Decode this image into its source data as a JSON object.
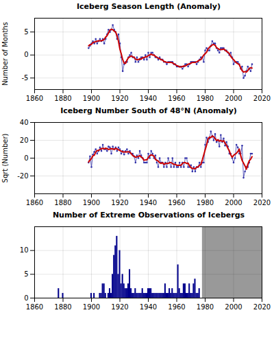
{
  "chart_data": [
    {
      "type": "line",
      "title": "Iceberg Season Length (Anomaly)",
      "ylabel": "Number of Months",
      "x": [
        1898,
        1899,
        1900,
        1901,
        1902,
        1903,
        1904,
        1905,
        1906,
        1907,
        1908,
        1909,
        1910,
        1911,
        1912,
        1913,
        1914,
        1915,
        1916,
        1917,
        1918,
        1919,
        1920,
        1921,
        1922,
        1923,
        1924,
        1925,
        1926,
        1927,
        1928,
        1929,
        1930,
        1931,
        1932,
        1933,
        1934,
        1935,
        1936,
        1937,
        1938,
        1939,
        1940,
        1941,
        1942,
        1943,
        1944,
        1945,
        1946,
        1947,
        1948,
        1949,
        1950,
        1951,
        1952,
        1953,
        1954,
        1955,
        1956,
        1957,
        1958,
        1959,
        1960,
        1961,
        1962,
        1963,
        1964,
        1965,
        1966,
        1967,
        1968,
        1969,
        1970,
        1971,
        1972,
        1973,
        1974,
        1975,
        1976,
        1977,
        1978,
        1979,
        1980,
        1981,
        1982,
        1983,
        1984,
        1985,
        1986,
        1987,
        1988,
        1989,
        1990,
        1991,
        1992,
        1993,
        1994,
        1995,
        1996,
        1997,
        1998,
        1999,
        2000,
        2001,
        2002,
        2003,
        2004,
        2005,
        2006,
        2007,
        2008,
        2009,
        2010,
        2011,
        2012,
        2013
      ],
      "series": [
        {
          "color": "#3333AA",
          "marker": "circle",
          "values": [
            1.5,
            2.0,
            2.5,
            3.0,
            2.5,
            3.5,
            2.5,
            3.0,
            3.5,
            3.0,
            3.5,
            2.5,
            3.5,
            4.5,
            5.5,
            5.0,
            5.5,
            6.5,
            5.5,
            5.0,
            3.5,
            4.5,
            2.5,
            -0.5,
            -3.5,
            -2.0,
            -1.5,
            -1.5,
            -0.5,
            0.0,
            0.5,
            -0.5,
            -0.5,
            -1.5,
            -0.5,
            -1.5,
            -1.0,
            -0.5,
            -0.5,
            -1.0,
            0.0,
            -1.0,
            0.5,
            -0.5,
            0.5,
            0.5,
            0.0,
            -0.5,
            -0.5,
            -1.0,
            -0.5,
            -1.0,
            -1.0,
            -1.5,
            -1.5,
            -2.0,
            -1.5,
            -1.5,
            -1.5,
            -1.5,
            -2.0,
            -2.0,
            -2.5,
            -2.5,
            -2.5,
            -2.5,
            -3.0,
            -2.5,
            -2.0,
            -2.0,
            -2.5,
            -2.0,
            -1.5,
            -1.5,
            -1.5,
            -1.5,
            -2.0,
            -1.5,
            -1.0,
            -0.5,
            -0.5,
            -1.5,
            1.0,
            1.5,
            1.0,
            1.0,
            2.0,
            3.0,
            2.5,
            2.5,
            1.5,
            1.0,
            0.5,
            1.5,
            1.5,
            1.5,
            1.0,
            1.0,
            0.5,
            0.0,
            0.5,
            -0.5,
            -2.0,
            -1.5,
            -1.5,
            -1.5,
            -2.0,
            -3.0,
            -2.5,
            -5.0,
            -4.5,
            -3.5,
            -2.5,
            -3.0,
            -3.5,
            -2.0
          ]
        },
        {
          "color": "#CC0000",
          "values": [
            2.0,
            2.25,
            2.3,
            2.7,
            2.8,
            2.9,
            3.0,
            3.1,
            3.1,
            3.1,
            3.2,
            3.4,
            3.9,
            4.2,
            4.8,
            5.4,
            5.6,
            5.5,
            5.2,
            5.0,
            4.2,
            3.0,
            1.3,
            0.2,
            -1.0,
            -1.8,
            -1.8,
            -1.1,
            -0.6,
            -0.4,
            -0.2,
            -0.4,
            -0.5,
            -0.9,
            -1.0,
            -1.0,
            -0.8,
            -0.9,
            -0.6,
            -0.6,
            -0.4,
            -0.4,
            -0.1,
            0.0,
            0.2,
            0.0,
            0.0,
            -0.3,
            -0.5,
            -0.7,
            -0.8,
            -1.0,
            -1.1,
            -1.4,
            -1.5,
            -1.6,
            -1.6,
            -1.6,
            -1.6,
            -1.7,
            -1.9,
            -2.1,
            -2.3,
            -2.4,
            -2.6,
            -2.6,
            -2.5,
            -2.4,
            -2.4,
            -2.2,
            -2.0,
            -1.9,
            -1.8,
            -1.6,
            -1.6,
            -1.6,
            -1.5,
            -1.3,
            -1.1,
            -1.0,
            -0.5,
            0.0,
            0.3,
            0.6,
            1.3,
            1.7,
            1.9,
            2.2,
            2.3,
            2.1,
            1.6,
            1.4,
            1.2,
            1.2,
            1.2,
            1.3,
            1.1,
            0.8,
            0.6,
            0.3,
            -0.3,
            -0.7,
            -1.0,
            -1.4,
            -1.7,
            -1.9,
            -2.1,
            -2.8,
            -3.4,
            -3.7,
            -3.6,
            -3.7,
            -3.4,
            -2.9,
            -2.75,
            -2.8333333333333335
          ]
        }
      ],
      "xlim": [
        1860,
        2020
      ],
      "xticks": [
        1860,
        1880,
        1900,
        1920,
        1940,
        1960,
        1980,
        2000,
        2020
      ],
      "ylim": [
        -7.5,
        8
      ],
      "yticks": [
        -5,
        0,
        5
      ],
      "grid": true
    },
    {
      "type": "line",
      "title": "Iceberg Number South of 48°N (Anomaly)",
      "ylabel": "Sqrt (Number)",
      "x": [
        1898,
        1899,
        1900,
        1901,
        1902,
        1903,
        1904,
        1905,
        1906,
        1907,
        1908,
        1909,
        1910,
        1911,
        1912,
        1913,
        1914,
        1915,
        1916,
        1917,
        1918,
        1919,
        1920,
        1921,
        1922,
        1923,
        1924,
        1925,
        1926,
        1927,
        1928,
        1929,
        1930,
        1931,
        1932,
        1933,
        1934,
        1935,
        1936,
        1937,
        1938,
        1939,
        1940,
        1941,
        1942,
        1943,
        1944,
        1945,
        1946,
        1947,
        1948,
        1949,
        1950,
        1951,
        1952,
        1953,
        1954,
        1955,
        1956,
        1957,
        1958,
        1959,
        1960,
        1961,
        1962,
        1963,
        1964,
        1965,
        1966,
        1967,
        1968,
        1969,
        1970,
        1971,
        1972,
        1973,
        1974,
        1975,
        1976,
        1977,
        1978,
        1979,
        1980,
        1981,
        1982,
        1983,
        1984,
        1985,
        1986,
        1987,
        1988,
        1989,
        1990,
        1991,
        1992,
        1993,
        1994,
        1995,
        1996,
        1997,
        1998,
        1999,
        2000,
        2001,
        2002,
        2003,
        2004,
        2005,
        2006,
        2007,
        2008,
        2009,
        2010,
        2011,
        2012,
        2013
      ],
      "series": [
        {
          "color": "#3333AA",
          "marker": "circle",
          "values": [
            -5.0,
            2.0,
            -10.0,
            4.0,
            7.0,
            10.0,
            5.0,
            8.0,
            12.0,
            8.0,
            15.0,
            10.0,
            10.0,
            8.0,
            13.0,
            12.0,
            5.0,
            13.0,
            10.0,
            12.0,
            8.0,
            12.0,
            10.0,
            5.0,
            8.0,
            4.0,
            8.0,
            10.0,
            5.0,
            8.0,
            5.0,
            5.0,
            2.0,
            -5.0,
            3.0,
            0.0,
            8.0,
            3.0,
            0.0,
            -5.0,
            -5.0,
            -5.0,
            5.0,
            0.0,
            8.0,
            5.0,
            0.0,
            3.0,
            -5.0,
            -10.0,
            0.0,
            -5.0,
            -5.0,
            -10.0,
            -5.0,
            -10.0,
            0.0,
            -5.0,
            -10.0,
            0.0,
            -10.0,
            -5.0,
            -10.0,
            -10.0,
            -5.0,
            -10.0,
            -5.0,
            -10.0,
            0.0,
            0.0,
            -10.0,
            -10.0,
            -8.0,
            -15.0,
            -10.0,
            -15.0,
            -10.0,
            -10.0,
            -5.0,
            -10.0,
            -5.0,
            -5.0,
            15.0,
            23.0,
            18.0,
            22.0,
            30.0,
            25.0,
            20.0,
            27.0,
            18.0,
            20.0,
            13.0,
            26.0,
            18.0,
            22.0,
            14.0,
            18.0,
            13.0,
            5.0,
            5.0,
            0.0,
            -5.0,
            0.0,
            15.0,
            12.0,
            5.0,
            5.0,
            14.0,
            -22.0,
            -15.0,
            -10.0,
            -10.0,
            -5.0,
            5.0,
            5.0
          ]
        },
        {
          "color": "#CC0000",
          "values": [
            -4.333333333333333,
            -2.25,
            -0.4,
            2.6,
            3.2,
            6.8,
            8.4,
            8.6,
            9.6,
            10.6,
            11.0,
            10.2,
            11.2,
            10.6,
            9.6,
            10.2,
            10.6,
            10.4,
            9.6,
            11.0,
            10.4,
            9.4,
            8.6,
            7.8,
            7.0,
            7.0,
            7.0,
            7.0,
            7.2,
            6.6,
            5.0,
            3.0,
            2.0,
            1.0,
            1.6,
            1.8,
            2.8,
            1.2,
            0.2,
            -2.4,
            -2.0,
            -2.0,
            0.6,
            2.6,
            3.6,
            3.2,
            2.2,
            -1.4,
            -2.4,
            -3.4,
            -5.0,
            -6.0,
            -5.0,
            -7.0,
            -6.0,
            -6.0,
            -6.0,
            -5.0,
            -5.0,
            -6.0,
            -7.0,
            -7.0,
            -8.0,
            -8.0,
            -8.0,
            -8.0,
            -6.0,
            -5.0,
            -5.0,
            -6.0,
            -5.6,
            -8.6,
            -10.6,
            -11.6,
            -11.6,
            -12.0,
            -10.0,
            -10.0,
            -8.0,
            -7.0,
            -2.0,
            3.6,
            9.2,
            14.6,
            21.6,
            23.6,
            23.0,
            24.8,
            24.0,
            22.0,
            19.6,
            20.8,
            19.0,
            19.8,
            18.6,
            19.6,
            17.0,
            14.4,
            11.0,
            8.2,
            3.6,
            1.0,
            3.0,
            4.4,
            5.4,
            7.4,
            10.2,
            2.8,
            -2.6,
            -5.6,
            -8.6,
            -12.4,
            -7.0,
            -3.0,
            -1.25,
            1.6666666666666667
          ]
        }
      ],
      "xlim": [
        1860,
        2020
      ],
      "xticks": [
        1860,
        1880,
        1900,
        1920,
        1940,
        1960,
        1980,
        2000,
        2020
      ],
      "ylim": [
        -40,
        40
      ],
      "yticks": [
        -20,
        0,
        20,
        40
      ],
      "grid": true
    },
    {
      "type": "bar",
      "title": "Number of Extreme Observations of Icebergs",
      "x": [
        1877,
        1880,
        1900,
        1902,
        1906,
        1907,
        1908,
        1909,
        1910,
        1912,
        1913,
        1914,
        1915,
        1916,
        1917,
        1918,
        1919,
        1920,
        1921,
        1922,
        1923,
        1924,
        1925,
        1926,
        1927,
        1928,
        1929,
        1930,
        1931,
        1932,
        1933,
        1934,
        1935,
        1936,
        1937,
        1938,
        1939,
        1940,
        1941,
        1942,
        1943,
        1944,
        1945,
        1946,
        1947,
        1948,
        1949,
        1950,
        1951,
        1952,
        1953,
        1954,
        1955,
        1956,
        1957,
        1958,
        1959,
        1960,
        1961,
        1962,
        1963,
        1964,
        1965,
        1966,
        1967,
        1968,
        1969,
        1970,
        1971,
        1972,
        1973,
        1974,
        1975,
        1976
      ],
      "values": [
        2,
        1,
        1,
        1,
        1,
        1,
        3,
        3,
        1,
        1,
        2,
        1,
        5,
        9,
        11,
        13,
        5,
        10,
        3,
        5,
        3,
        2,
        2,
        3,
        6,
        2,
        1,
        1,
        2,
        1,
        1,
        1,
        1,
        2,
        1,
        1,
        1,
        2,
        2,
        2,
        1,
        1,
        1,
        1,
        1,
        1,
        1,
        1,
        1,
        3,
        1,
        1,
        2,
        1,
        2,
        1,
        1,
        1,
        7,
        2,
        1,
        1,
        3,
        3,
        1,
        1,
        3,
        1,
        1,
        3,
        4,
        1,
        1,
        2
      ],
      "color": "#00008B",
      "shade": {
        "x": [
          1978,
          2020
        ],
        "color": "#999999"
      },
      "xlim": [
        1860,
        2020
      ],
      "xticks": [
        1860,
        1880,
        1900,
        1920,
        1940,
        1960,
        1980,
        2000,
        2020
      ],
      "ylim": [
        0,
        15
      ],
      "yticks": [
        0,
        5,
        10
      ],
      "grid": true
    }
  ]
}
